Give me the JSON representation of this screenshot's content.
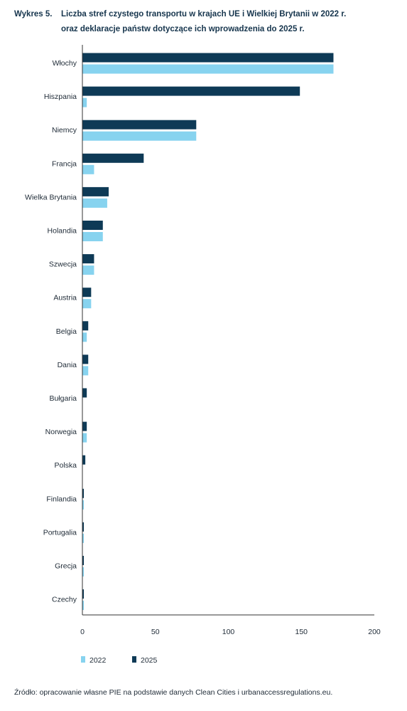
{
  "title": {
    "label": "Wykres 5.",
    "line1": "Liczba stref czystego transportu w krajach UE i Wielkiej Brytanii w 2022 r.",
    "line2": "oraz deklaracje państw dotyczące ich wprowadzenia do 2025 r."
  },
  "source": "Źródło: opracowanie własne PIE na podstawie danych Clean Cities i urbanaccessregulations.eu.",
  "colors": {
    "s2022": "#87d3ef",
    "s2025": "#0e3a56",
    "axis": "#333333",
    "text": "#1e2a36"
  },
  "chart_data": {
    "type": "bar",
    "orientation": "horizontal",
    "categories": [
      "Włochy",
      "Hiszpania",
      "Niemcy",
      "Francja",
      "Wielka Brytania",
      "Holandia",
      "Szwecja",
      "Austria",
      "Belgia",
      "Dania",
      "Bułgaria",
      "Norwegia",
      "Polska",
      "Finlandia",
      "Portugalia",
      "Grecja",
      "Czechy"
    ],
    "series": [
      {
        "name": "2025",
        "values": [
          172,
          149,
          78,
          42,
          18,
          14,
          8,
          6,
          4,
          4,
          3,
          3,
          2,
          1,
          1,
          1,
          1
        ]
      },
      {
        "name": "2022",
        "values": [
          172,
          3,
          78,
          8,
          17,
          14,
          8,
          6,
          3,
          4,
          0,
          3,
          0,
          1,
          1,
          1,
          1
        ]
      }
    ],
    "xlim": [
      0,
      200
    ],
    "xticks": [
      "0",
      "50",
      "100",
      "150",
      "200"
    ],
    "legend": [
      "2022",
      "2025"
    ],
    "legend_position": "bottom-left",
    "grid": false
  }
}
